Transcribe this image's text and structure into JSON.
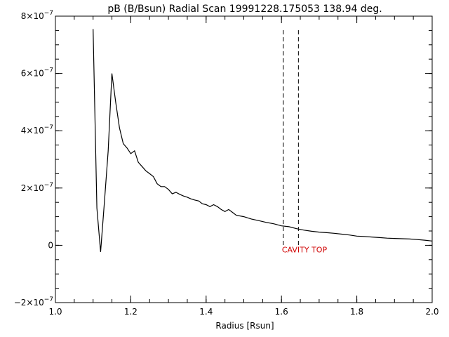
{
  "chart_data": {
    "type": "line",
    "title": "pB (B/Bsun) Radial Scan 19991228.175053 138.94 deg.",
    "xlabel": "Radius [Rsun]",
    "ylabel": "",
    "xlim": [
      1.0,
      2.0
    ],
    "ylim": [
      -2e-07,
      8e-07
    ],
    "x_ticks": [
      1.0,
      1.2,
      1.4,
      1.6,
      1.8,
      2.0
    ],
    "x_tick_labels": [
      "1.0",
      "1.2",
      "1.4",
      "1.6",
      "1.8",
      "2.0"
    ],
    "y_ticks": [
      -2e-07,
      0,
      2e-07,
      4e-07,
      6e-07,
      8e-07
    ],
    "y_tick_labels": [
      {
        "mantissa": "−2×10",
        "exp": "−7"
      },
      {
        "mantissa": "0",
        "exp": ""
      },
      {
        "mantissa": "2×10",
        "exp": "−7"
      },
      {
        "mantissa": "4×10",
        "exp": "−7"
      },
      {
        "mantissa": "6×10",
        "exp": "−7"
      },
      {
        "mantissa": "8×10",
        "exp": "−7"
      }
    ],
    "grid": false,
    "series": [
      {
        "x": [
          1.1,
          1.11,
          1.12,
          1.13,
          1.14,
          1.15,
          1.16,
          1.17,
          1.18,
          1.19,
          1.2,
          1.21,
          1.22,
          1.23,
          1.24,
          1.25,
          1.26,
          1.27,
          1.28,
          1.29,
          1.3,
          1.31,
          1.32,
          1.33,
          1.34,
          1.35,
          1.36,
          1.37,
          1.38,
          1.39,
          1.4,
          1.41,
          1.42,
          1.43,
          1.44,
          1.45,
          1.46,
          1.47,
          1.48,
          1.5,
          1.52,
          1.54,
          1.56,
          1.58,
          1.6,
          1.62,
          1.64,
          1.66,
          1.68,
          1.7,
          1.72,
          1.74,
          1.76,
          1.78,
          1.8,
          1.82,
          1.84,
          1.86,
          1.88,
          1.9,
          1.92,
          1.94,
          1.96,
          1.98,
          2.0
        ],
        "y": [
          7.55e-07,
          1.3e-07,
          -2.3e-08,
          1.5e-07,
          3.3e-07,
          6e-07,
          5e-07,
          4.1e-07,
          3.55e-07,
          3.4e-07,
          3.2e-07,
          3.3e-07,
          2.9e-07,
          2.75e-07,
          2.6e-07,
          2.5e-07,
          2.4e-07,
          2.15e-07,
          2.05e-07,
          2.05e-07,
          1.95e-07,
          1.8e-07,
          1.85e-07,
          1.78e-07,
          1.72e-07,
          1.68e-07,
          1.62e-07,
          1.58e-07,
          1.55e-07,
          1.45e-07,
          1.42e-07,
          1.35e-07,
          1.42e-07,
          1.35e-07,
          1.25e-07,
          1.18e-07,
          1.25e-07,
          1.15e-07,
          1.05e-07,
          1e-07,
          9.2e-08,
          8.6e-08,
          8e-08,
          7.5e-08,
          6.8e-08,
          6.5e-08,
          5.8e-08,
          5.3e-08,
          4.9e-08,
          4.6e-08,
          4.4e-08,
          4.2e-08,
          3.9e-08,
          3.6e-08,
          3.2e-08,
          3.1e-08,
          2.9e-08,
          2.7e-08,
          2.5e-08,
          2.4e-08,
          2.3e-08,
          2.2e-08,
          2e-08,
          1.8e-08,
          1.5e-08
        ]
      }
    ],
    "vlines": [
      1.605,
      1.645
    ],
    "annotation": {
      "text": "CAVITY TOP",
      "x": 1.605,
      "y": -1.5e-08
    }
  }
}
